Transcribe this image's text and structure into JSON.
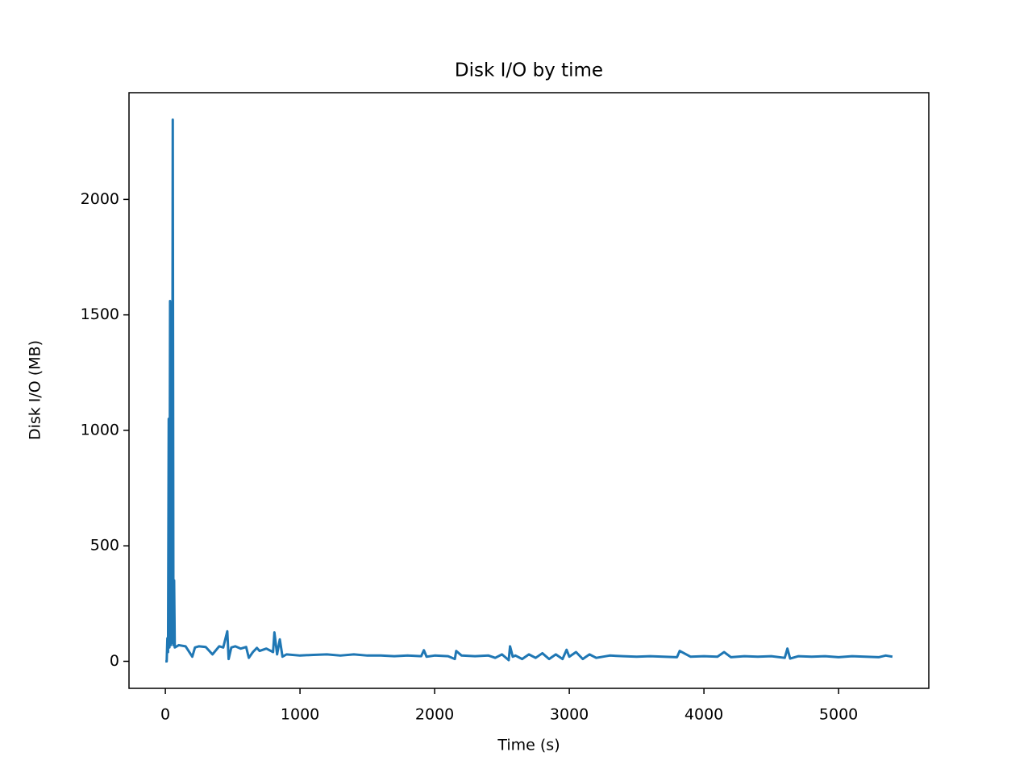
{
  "chart_data": {
    "type": "line",
    "title": "Disk I/O by time",
    "x_label": "Time (s)",
    "y_label": "Disk I/O (MB)",
    "x": [
      0,
      10,
      15,
      20,
      25,
      30,
      35,
      40,
      45,
      50,
      55,
      60,
      65,
      70,
      100,
      150,
      200,
      220,
      250,
      300,
      350,
      400,
      430,
      460,
      470,
      490,
      520,
      560,
      600,
      620,
      650,
      680,
      700,
      750,
      800,
      810,
      830,
      850,
      870,
      900,
      1000,
      1100,
      1200,
      1300,
      1400,
      1500,
      1600,
      1700,
      1800,
      1900,
      1920,
      1940,
      2000,
      2100,
      2150,
      2160,
      2200,
      2300,
      2400,
      2450,
      2500,
      2550,
      2560,
      2580,
      2600,
      2650,
      2700,
      2750,
      2800,
      2850,
      2900,
      2950,
      2980,
      3000,
      3050,
      3100,
      3150,
      3200,
      3300,
      3400,
      3500,
      3600,
      3700,
      3800,
      3820,
      3900,
      4000,
      4100,
      4150,
      4200,
      4300,
      4400,
      4500,
      4600,
      4620,
      4640,
      4700,
      4800,
      4900,
      5000,
      5100,
      5200,
      5300,
      5350,
      5400
    ],
    "series": [
      {
        "color": "#1f77b4",
        "values": [
          0,
          0,
          100,
          40,
          1050,
          60,
          1560,
          70,
          1550,
          80,
          2345,
          70,
          350,
          60,
          70,
          65,
          20,
          60,
          65,
          62,
          30,
          65,
          60,
          130,
          10,
          60,
          65,
          55,
          62,
          15,
          40,
          58,
          45,
          55,
          40,
          125,
          30,
          95,
          20,
          30,
          25,
          28,
          30,
          25,
          30,
          25,
          25,
          22,
          25,
          22,
          48,
          20,
          25,
          22,
          10,
          45,
          25,
          22,
          25,
          15,
          30,
          5,
          65,
          20,
          25,
          10,
          30,
          15,
          35,
          10,
          30,
          10,
          50,
          20,
          40,
          10,
          30,
          15,
          25,
          22,
          20,
          22,
          20,
          18,
          45,
          20,
          22,
          20,
          40,
          18,
          22,
          20,
          22,
          15,
          55,
          12,
          22,
          20,
          22,
          18,
          22,
          20,
          18,
          25,
          20
        ]
      }
    ],
    "xlim": [
      -270,
      5670
    ],
    "ylim": [
      -117,
      2462
    ],
    "xticks": [
      0,
      1000,
      2000,
      3000,
      4000,
      5000
    ],
    "yticks": [
      0,
      500,
      1000,
      1500,
      2000
    ]
  }
}
